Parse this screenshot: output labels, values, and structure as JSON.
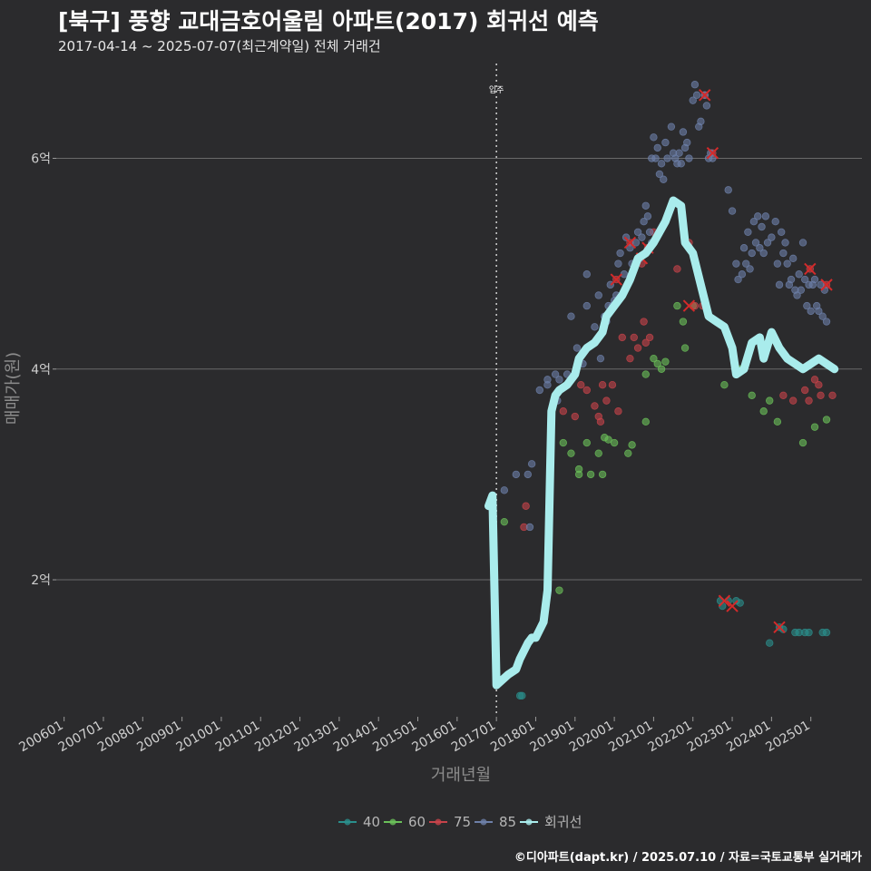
{
  "chart_data": {
    "type": "scatter",
    "title": "[북구] 풍향 교대금호어울림 아파트(2017) 회귀선 예측",
    "subtitle": "2017-04-14 ~ 2025-07-07(최근계약일) 전체 거래건",
    "xlabel": "거래년월",
    "ylabel": "매매가(원)",
    "x_ticks": [
      "200601",
      "200701",
      "200801",
      "200901",
      "201001",
      "201101",
      "201201",
      "201301",
      "201401",
      "201501",
      "201601",
      "201701",
      "201801",
      "201901",
      "202001",
      "202101",
      "202201",
      "202301",
      "202401",
      "202501"
    ],
    "y_ticks": [
      {
        "value": 2,
        "label": "2억"
      },
      {
        "value": 4,
        "label": "4억"
      },
      {
        "value": 6,
        "label": "6억"
      }
    ],
    "xlim": [
      2005.8,
      2026.3
    ],
    "ylim": [
      0.7,
      6.9
    ],
    "grid": "horizontal",
    "legend_position": "bottom",
    "annotation": {
      "label": "입주",
      "x": 2017.0
    },
    "colors": {
      "40": "#2a8f8c",
      "60": "#6abf59",
      "75": "#c7434a",
      "85": "#6d7fa8",
      "regression": "#a9ecec",
      "marker": "#d42a2a"
    },
    "series": [
      {
        "name": "40",
        "points": [
          [
            2017.6,
            0.9
          ],
          [
            2017.65,
            0.9
          ],
          [
            2022.7,
            1.8
          ],
          [
            2022.75,
            1.75
          ],
          [
            2022.9,
            1.8
          ],
          [
            2023.1,
            1.8
          ],
          [
            2023.2,
            1.78
          ],
          [
            2023.95,
            1.4
          ],
          [
            2024.2,
            1.55
          ],
          [
            2024.3,
            1.53
          ],
          [
            2024.6,
            1.5
          ],
          [
            2024.7,
            1.5
          ],
          [
            2024.85,
            1.5
          ],
          [
            2024.95,
            1.5
          ],
          [
            2025.3,
            1.5
          ],
          [
            2025.4,
            1.5
          ]
        ]
      },
      {
        "name": "60",
        "points": [
          [
            2017.2,
            2.55
          ],
          [
            2018.6,
            1.9
          ],
          [
            2018.7,
            3.3
          ],
          [
            2018.9,
            3.2
          ],
          [
            2019.1,
            3.05
          ],
          [
            2019.1,
            3.0
          ],
          [
            2019.3,
            3.3
          ],
          [
            2019.4,
            3.0
          ],
          [
            2019.6,
            3.2
          ],
          [
            2019.75,
            3.35
          ],
          [
            2019.85,
            3.33
          ],
          [
            2019.7,
            3.0
          ],
          [
            2020.0,
            3.3
          ],
          [
            2020.35,
            3.2
          ],
          [
            2020.45,
            3.28
          ],
          [
            2020.8,
            3.5
          ],
          [
            2020.8,
            3.95
          ],
          [
            2021.0,
            4.1
          ],
          [
            2021.1,
            4.05
          ],
          [
            2021.2,
            4.0
          ],
          [
            2021.3,
            4.07
          ],
          [
            2021.6,
            4.6
          ],
          [
            2021.75,
            4.45
          ],
          [
            2021.8,
            4.2
          ],
          [
            2022.0,
            4.6
          ],
          [
            2022.8,
            3.85
          ],
          [
            2023.2,
            4.0
          ],
          [
            2023.5,
            3.75
          ],
          [
            2023.8,
            3.6
          ],
          [
            2023.95,
            3.7
          ],
          [
            2024.15,
            3.5
          ],
          [
            2024.4,
            4.1
          ],
          [
            2024.8,
            3.3
          ],
          [
            2025.1,
            3.45
          ],
          [
            2025.4,
            3.52
          ]
        ]
      },
      {
        "name": "75",
        "points": [
          [
            2017.7,
            2.5
          ],
          [
            2017.75,
            2.7
          ],
          [
            2018.7,
            3.6
          ],
          [
            2019.0,
            3.55
          ],
          [
            2019.15,
            3.85
          ],
          [
            2019.3,
            3.8
          ],
          [
            2019.5,
            3.65
          ],
          [
            2019.6,
            3.55
          ],
          [
            2019.65,
            3.5
          ],
          [
            2019.7,
            3.85
          ],
          [
            2019.8,
            3.7
          ],
          [
            2019.95,
            3.85
          ],
          [
            2020.1,
            3.6
          ],
          [
            2020.0,
            4.6
          ],
          [
            2020.05,
            4.85
          ],
          [
            2020.2,
            4.3
          ],
          [
            2020.4,
            4.1
          ],
          [
            2020.4,
            5.2
          ],
          [
            2020.5,
            4.3
          ],
          [
            2020.6,
            4.2
          ],
          [
            2020.7,
            5.0
          ],
          [
            2020.75,
            4.45
          ],
          [
            2020.8,
            4.25
          ],
          [
            2020.85,
            5.15
          ],
          [
            2020.9,
            4.3
          ],
          [
            2021.0,
            5.3
          ],
          [
            2021.6,
            4.95
          ],
          [
            2021.9,
            5.2
          ],
          [
            2022.05,
            4.6
          ],
          [
            2022.25,
            4.6
          ],
          [
            2022.3,
            6.6
          ],
          [
            2022.5,
            6.05
          ],
          [
            2024.3,
            3.75
          ],
          [
            2024.55,
            3.7
          ],
          [
            2024.85,
            3.8
          ],
          [
            2024.95,
            3.7
          ],
          [
            2024.98,
            4.95
          ],
          [
            2025.1,
            3.9
          ],
          [
            2025.2,
            3.85
          ],
          [
            2025.25,
            3.75
          ],
          [
            2025.4,
            4.8
          ],
          [
            2025.55,
            3.75
          ]
        ]
      },
      {
        "name": "85",
        "points": [
          [
            2017.2,
            2.85
          ],
          [
            2017.5,
            3.0
          ],
          [
            2017.8,
            3.0
          ],
          [
            2017.85,
            2.5
          ],
          [
            2017.9,
            3.1
          ],
          [
            2018.1,
            3.8
          ],
          [
            2018.3,
            3.9
          ],
          [
            2018.3,
            3.85
          ],
          [
            2018.5,
            3.95
          ],
          [
            2018.55,
            3.7
          ],
          [
            2018.6,
            3.9
          ],
          [
            2018.8,
            3.95
          ],
          [
            2018.9,
            4.5
          ],
          [
            2019.05,
            4.2
          ],
          [
            2019.2,
            4.05
          ],
          [
            2019.3,
            4.6
          ],
          [
            2019.3,
            4.9
          ],
          [
            2019.5,
            4.4
          ],
          [
            2019.6,
            4.7
          ],
          [
            2019.65,
            4.1
          ],
          [
            2019.7,
            4.35
          ],
          [
            2019.75,
            4.5
          ],
          [
            2019.8,
            4.45
          ],
          [
            2019.85,
            4.6
          ],
          [
            2019.9,
            4.8
          ],
          [
            2019.95,
            4.6
          ],
          [
            2020.0,
            4.65
          ],
          [
            2020.05,
            4.7
          ],
          [
            2020.1,
            5.0
          ],
          [
            2020.15,
            5.1
          ],
          [
            2020.25,
            4.9
          ],
          [
            2020.3,
            5.25
          ],
          [
            2020.4,
            5.15
          ],
          [
            2020.45,
            5.0
          ],
          [
            2020.5,
            4.95
          ],
          [
            2020.55,
            5.2
          ],
          [
            2020.6,
            5.3
          ],
          [
            2020.65,
            5.05
          ],
          [
            2020.7,
            5.25
          ],
          [
            2020.75,
            5.4
          ],
          [
            2020.8,
            5.55
          ],
          [
            2020.85,
            5.45
          ],
          [
            2020.9,
            5.3
          ],
          [
            2020.95,
            5.2
          ],
          [
            2020.95,
            6.0
          ],
          [
            2021.0,
            6.2
          ],
          [
            2021.05,
            6.0
          ],
          [
            2021.1,
            6.1
          ],
          [
            2021.15,
            5.85
          ],
          [
            2021.2,
            5.95
          ],
          [
            2021.25,
            5.8
          ],
          [
            2021.3,
            6.15
          ],
          [
            2021.35,
            6.0
          ],
          [
            2021.45,
            6.3
          ],
          [
            2021.5,
            6.05
          ],
          [
            2021.55,
            6.0
          ],
          [
            2021.6,
            5.95
          ],
          [
            2021.65,
            6.05
          ],
          [
            2021.7,
            5.95
          ],
          [
            2021.75,
            6.25
          ],
          [
            2021.8,
            6.1
          ],
          [
            2021.85,
            6.15
          ],
          [
            2021.9,
            6.0
          ],
          [
            2022.0,
            6.55
          ],
          [
            2022.05,
            6.7
          ],
          [
            2022.1,
            6.6
          ],
          [
            2022.15,
            6.3
          ],
          [
            2022.2,
            6.35
          ],
          [
            2022.3,
            6.6
          ],
          [
            2022.35,
            6.5
          ],
          [
            2022.4,
            6.0
          ],
          [
            2022.45,
            6.05
          ],
          [
            2022.5,
            6.0
          ],
          [
            2022.9,
            5.7
          ],
          [
            2023.0,
            5.5
          ],
          [
            2023.1,
            5.0
          ],
          [
            2023.15,
            4.85
          ],
          [
            2023.25,
            4.9
          ],
          [
            2023.3,
            5.15
          ],
          [
            2023.35,
            5.0
          ],
          [
            2023.4,
            5.3
          ],
          [
            2023.45,
            4.95
          ],
          [
            2023.5,
            5.1
          ],
          [
            2023.55,
            5.4
          ],
          [
            2023.6,
            5.2
          ],
          [
            2023.65,
            5.45
          ],
          [
            2023.7,
            5.15
          ],
          [
            2023.75,
            5.35
          ],
          [
            2023.8,
            5.1
          ],
          [
            2023.85,
            5.45
          ],
          [
            2023.9,
            5.2
          ],
          [
            2024.0,
            5.25
          ],
          [
            2024.1,
            5.4
          ],
          [
            2024.15,
            5.0
          ],
          [
            2024.2,
            4.8
          ],
          [
            2024.25,
            5.3
          ],
          [
            2024.3,
            5.1
          ],
          [
            2024.35,
            5.2
          ],
          [
            2024.4,
            5.0
          ],
          [
            2024.45,
            4.8
          ],
          [
            2024.5,
            4.85
          ],
          [
            2024.55,
            5.05
          ],
          [
            2024.6,
            4.75
          ],
          [
            2024.65,
            4.7
          ],
          [
            2024.7,
            4.9
          ],
          [
            2024.75,
            4.75
          ],
          [
            2024.8,
            5.2
          ],
          [
            2024.85,
            4.85
          ],
          [
            2024.9,
            4.6
          ],
          [
            2024.95,
            4.8
          ],
          [
            2025.0,
            4.55
          ],
          [
            2025.05,
            4.8
          ],
          [
            2025.1,
            4.85
          ],
          [
            2025.15,
            4.6
          ],
          [
            2025.2,
            4.55
          ],
          [
            2025.25,
            4.8
          ],
          [
            2025.3,
            4.5
          ],
          [
            2025.35,
            4.75
          ],
          [
            2025.4,
            4.45
          ]
        ]
      }
    ],
    "regression": {
      "name": "회귀선",
      "points": [
        [
          2016.8,
          2.7
        ],
        [
          2016.9,
          2.8
        ],
        [
          2017.0,
          1.0
        ],
        [
          2017.3,
          1.1
        ],
        [
          2017.5,
          1.15
        ],
        [
          2017.6,
          1.25
        ],
        [
          2017.8,
          1.4
        ],
        [
          2017.9,
          1.45
        ],
        [
          2018.0,
          1.45
        ],
        [
          2018.2,
          1.6
        ],
        [
          2018.3,
          1.9
        ],
        [
          2018.4,
          3.6
        ],
        [
          2018.5,
          3.75
        ],
        [
          2018.6,
          3.8
        ],
        [
          2018.8,
          3.85
        ],
        [
          2019.0,
          3.95
        ],
        [
          2019.1,
          4.1
        ],
        [
          2019.3,
          4.2
        ],
        [
          2019.5,
          4.25
        ],
        [
          2019.7,
          4.35
        ],
        [
          2019.8,
          4.5
        ],
        [
          2020.0,
          4.6
        ],
        [
          2020.2,
          4.7
        ],
        [
          2020.4,
          4.85
        ],
        [
          2020.6,
          5.05
        ],
        [
          2020.8,
          5.1
        ],
        [
          2021.0,
          5.2
        ],
        [
          2021.3,
          5.4
        ],
        [
          2021.5,
          5.6
        ],
        [
          2021.7,
          5.55
        ],
        [
          2021.8,
          5.2
        ],
        [
          2022.0,
          5.1
        ],
        [
          2022.2,
          4.8
        ],
        [
          2022.4,
          4.5
        ],
        [
          2022.6,
          4.45
        ],
        [
          2022.8,
          4.4
        ],
        [
          2023.0,
          4.2
        ],
        [
          2023.1,
          3.95
        ],
        [
          2023.3,
          4.0
        ],
        [
          2023.5,
          4.25
        ],
        [
          2023.7,
          4.3
        ],
        [
          2023.8,
          4.1
        ],
        [
          2024.0,
          4.35
        ],
        [
          2024.2,
          4.2
        ],
        [
          2024.4,
          4.1
        ],
        [
          2024.6,
          4.05
        ],
        [
          2024.8,
          4.0
        ],
        [
          2025.0,
          4.05
        ],
        [
          2025.2,
          4.1
        ],
        [
          2025.4,
          4.05
        ],
        [
          2025.6,
          4.0
        ]
      ]
    },
    "highlighted": [
      [
        2020.05,
        4.85
      ],
      [
        2020.4,
        5.2
      ],
      [
        2020.7,
        5.05
      ],
      [
        2020.85,
        5.15
      ],
      [
        2022.3,
        6.6
      ],
      [
        2022.5,
        6.05
      ],
      [
        2021.9,
        4.6
      ],
      [
        2022.8,
        1.8
      ],
      [
        2023.0,
        1.75
      ],
      [
        2024.2,
        1.55
      ],
      [
        2024.98,
        4.95
      ],
      [
        2025.4,
        4.8
      ]
    ]
  },
  "legend": {
    "items": [
      {
        "key": "40",
        "label": "40"
      },
      {
        "key": "60",
        "label": "60"
      },
      {
        "key": "75",
        "label": "75"
      },
      {
        "key": "85",
        "label": "85"
      },
      {
        "key": "regression",
        "label": "회귀선"
      }
    ]
  },
  "credit": "©디아파트(dapt.kr) / 2025.07.10 / 자료=국토교통부 실거래가"
}
